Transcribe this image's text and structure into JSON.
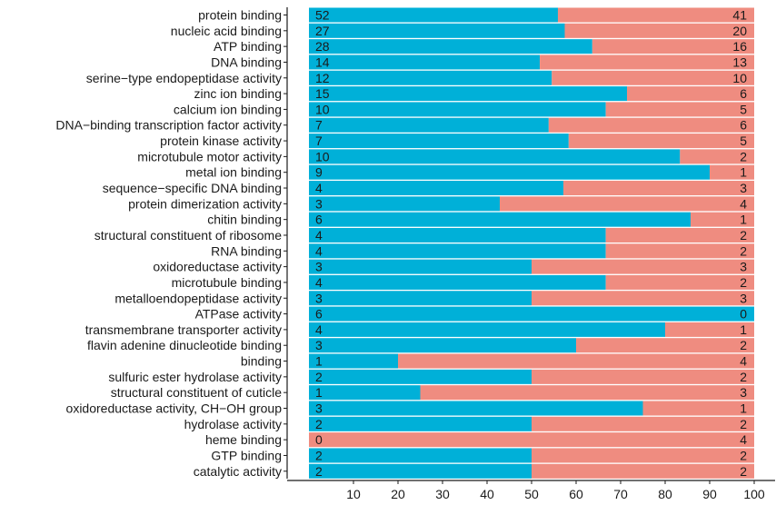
{
  "chart_data": {
    "type": "bar",
    "orientation": "horizontal",
    "stacked": "percent",
    "title": "",
    "xlabel": "",
    "ylabel": "",
    "xlim": [
      0,
      100
    ],
    "x_ticks": [
      "10",
      "20",
      "30",
      "40",
      "50",
      "60",
      "70",
      "80",
      "90",
      "100"
    ],
    "grid": false,
    "legend": "none",
    "categories": [
      "protein binding",
      "nucleic acid binding",
      "ATP binding",
      "DNA binding",
      "serine−type endopeptidase activity",
      "zinc ion binding",
      "calcium ion binding",
      "DNA−binding transcription factor activity",
      "protein kinase activity",
      "microtubule motor activity",
      "metal ion binding",
      "sequence−specific DNA binding",
      "protein dimerization activity",
      "chitin binding",
      "structural constituent of ribosome",
      "RNA binding",
      "oxidoreductase activity",
      "microtubule binding",
      "metalloendopeptidase activity",
      "ATPase activity",
      "transmembrane transporter activity",
      "flavin adenine dinucleotide binding",
      "binding",
      "sulfuric ester hydrolase activity",
      "structural constituent of cuticle",
      "oxidoreductase activity, CH−OH group",
      "hydrolase activity",
      "heme binding",
      "GTP binding",
      "catalytic activity"
    ],
    "series": [
      {
        "color": "#00b0d8",
        "values": [
          52,
          27,
          28,
          14,
          12,
          15,
          10,
          7,
          7,
          10,
          9,
          4,
          3,
          6,
          4,
          4,
          3,
          4,
          3,
          6,
          4,
          3,
          1,
          2,
          1,
          3,
          2,
          0,
          2,
          2
        ]
      },
      {
        "color": "#ef8c80",
        "values": [
          41,
          20,
          16,
          13,
          10,
          6,
          5,
          6,
          5,
          2,
          1,
          3,
          4,
          1,
          2,
          2,
          3,
          2,
          3,
          0,
          1,
          2,
          4,
          2,
          3,
          1,
          2,
          4,
          2,
          2
        ]
      }
    ]
  }
}
